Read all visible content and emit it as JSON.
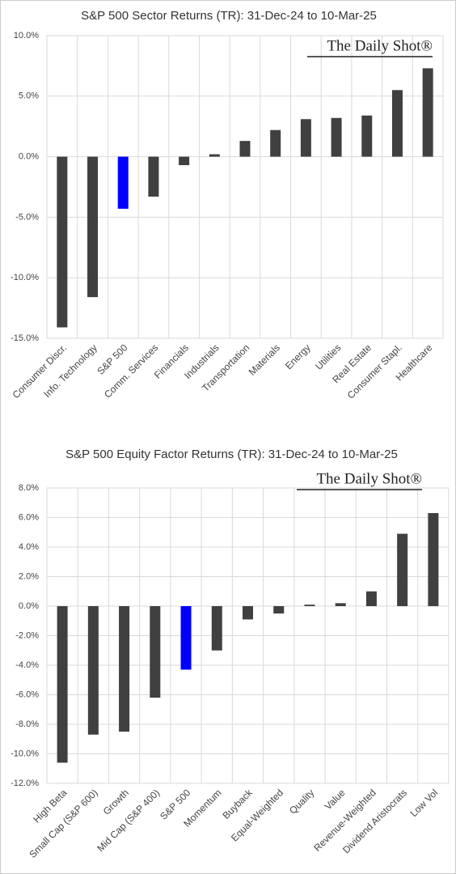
{
  "chart_data": [
    {
      "type": "bar",
      "title": "S&P 500 Sector Returns (TR): 31-Dec-24 to 10-Mar-25",
      "watermark": "The Daily Shot®",
      "categories": [
        "Consumer Discr.",
        "Info. Technology",
        "S&P 500",
        "Comm. Services",
        "Financials",
        "Industrials",
        "Transportation",
        "Materials",
        "Energy",
        "Utilities",
        "Real Estate",
        "Consumer Stapl.",
        "Healthcare"
      ],
      "values": [
        -14.1,
        -11.6,
        -4.3,
        -3.3,
        -0.7,
        0.2,
        1.3,
        2.2,
        3.1,
        3.2,
        3.4,
        5.5,
        7.3
      ],
      "colors": [
        "#404040",
        "#404040",
        "#0000ff",
        "#404040",
        "#404040",
        "#404040",
        "#404040",
        "#404040",
        "#404040",
        "#404040",
        "#404040",
        "#404040",
        "#404040"
      ],
      "ylim": [
        -15,
        10
      ],
      "yticks": [
        {
          "value": -15,
          "label": "-15.0%"
        },
        {
          "value": -10,
          "label": "-10.0%"
        },
        {
          "value": -5,
          "label": "-5.0%"
        },
        {
          "value": 0,
          "label": "0.0%"
        },
        {
          "value": 5,
          "label": "5.0%"
        },
        {
          "value": 10,
          "label": "10.0%"
        }
      ],
      "grid": true
    },
    {
      "type": "bar",
      "title": "S&P 500 Equity Factor Returns (TR): 31-Dec-24 to 10-Mar-25",
      "watermark": "The Daily Shot®",
      "categories": [
        "High Beta",
        "Small Cap (S&P 600)",
        "Growth",
        "Mid Cap (S&P 400)",
        "S&P 500",
        "Momentum",
        "Buyback",
        "Equal-Weighted",
        "Quality",
        "Value",
        "Revenue-Weighted",
        "Dividend Aristocrats",
        "Low Vol"
      ],
      "values": [
        -10.6,
        -8.7,
        -8.5,
        -6.2,
        -4.3,
        -3.0,
        -0.9,
        -0.5,
        0.1,
        0.2,
        1.0,
        4.9,
        6.3
      ],
      "colors": [
        "#404040",
        "#404040",
        "#404040",
        "#404040",
        "#0000ff",
        "#404040",
        "#404040",
        "#404040",
        "#404040",
        "#404040",
        "#404040",
        "#404040",
        "#404040"
      ],
      "ylim": [
        -12,
        8
      ],
      "yticks": [
        {
          "value": -12,
          "label": "-12.0%"
        },
        {
          "value": -10,
          "label": "-10.0%"
        },
        {
          "value": -8,
          "label": "-8.0%"
        },
        {
          "value": -6,
          "label": "-6.0%"
        },
        {
          "value": -4,
          "label": "-4.0%"
        },
        {
          "value": -2,
          "label": "-2.0%"
        },
        {
          "value": 0,
          "label": "0.0%"
        },
        {
          "value": 2,
          "label": "2.0%"
        },
        {
          "value": 4,
          "label": "4.0%"
        },
        {
          "value": 6,
          "label": "6.0%"
        },
        {
          "value": 8,
          "label": "8.0%"
        }
      ],
      "grid": true
    }
  ]
}
